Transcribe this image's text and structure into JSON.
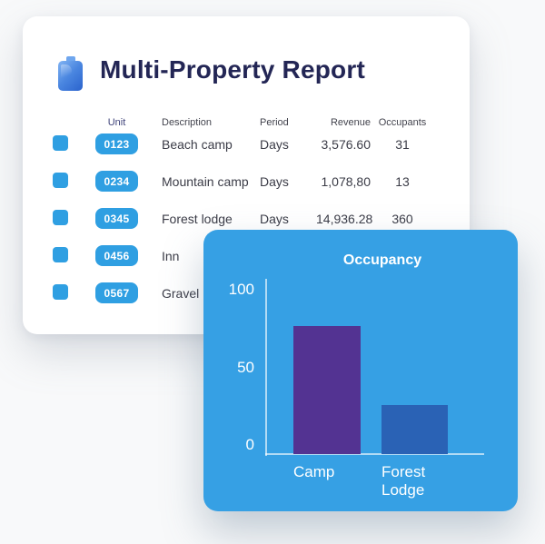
{
  "report_card": {
    "title": "Multi-Property Report",
    "columns": [
      "Unit",
      "Description",
      "Period",
      "Revenue",
      "Occupants"
    ],
    "rows": [
      {
        "unit": "0123",
        "description": "Beach camp",
        "period": "Days",
        "revenue": "3,576.60",
        "occupants": "31"
      },
      {
        "unit": "0234",
        "description": "Mountain camp",
        "period": "Days",
        "revenue": "1,078,80",
        "occupants": "13"
      },
      {
        "unit": "0345",
        "description": "Forest lodge",
        "period": "Days",
        "revenue": "14,936.28",
        "occupants": "360"
      },
      {
        "unit": "0456",
        "description": "Inn",
        "period": "",
        "revenue": "",
        "occupants": ""
      },
      {
        "unit": "0567",
        "description": "Gravel",
        "period": "",
        "revenue": "",
        "occupants": ""
      }
    ]
  },
  "chart_data": {
    "type": "bar",
    "title": "Occupancy",
    "categories": [
      "Camp",
      "Forest Lodge"
    ],
    "values": [
      78,
      30
    ],
    "yticks": [
      0,
      50,
      100
    ],
    "ylim": [
      0,
      100
    ],
    "xlabel": "",
    "ylabel": "",
    "grid": false,
    "legend": "none",
    "bar_colors": [
      "#533392",
      "#2a62b5"
    ]
  },
  "colors": {
    "accent_blue": "#2f9fe2",
    "chart_card_blue": "#36a0e4",
    "title_navy": "#232655",
    "bar_purple": "#533392",
    "bar_blue": "#2a62b5",
    "axis_white": "#ffffff"
  }
}
